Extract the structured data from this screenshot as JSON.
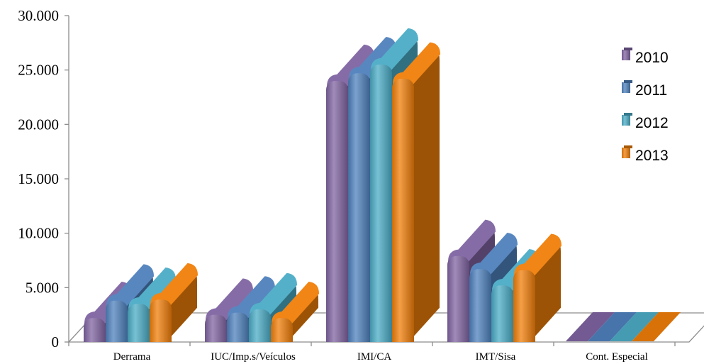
{
  "chart_data": {
    "type": "bar",
    "title": "",
    "xlabel": "",
    "ylabel": "",
    "ylim": [
      0,
      30000
    ],
    "yticks": [
      0,
      5000,
      10000,
      15000,
      20000,
      25000,
      30000
    ],
    "ytick_labels": [
      "0",
      "5.000",
      "10.000",
      "15.000",
      "20.000",
      "25.000",
      "30.000"
    ],
    "categories": [
      "Derrama",
      "IUC/Imp.s/Veículos",
      "IMI/CA",
      "IMT/Sisa",
      "Cont. Especial"
    ],
    "series": [
      {
        "name": "2010",
        "color": "#8064A2",
        "values": [
          2200,
          2500,
          24000,
          7900,
          0
        ]
      },
      {
        "name": "2011",
        "color": "#4F81BD",
        "values": [
          3800,
          2700,
          24700,
          6700,
          0
        ]
      },
      {
        "name": "2012",
        "color": "#4BACC6",
        "values": [
          3500,
          3000,
          25500,
          5200,
          0
        ]
      },
      {
        "name": "2013",
        "color": "#F07F09",
        "values": [
          3900,
          2200,
          24200,
          6600,
          0
        ]
      }
    ],
    "legend_position": "right",
    "grid": false,
    "style": "3d-cylinder"
  }
}
